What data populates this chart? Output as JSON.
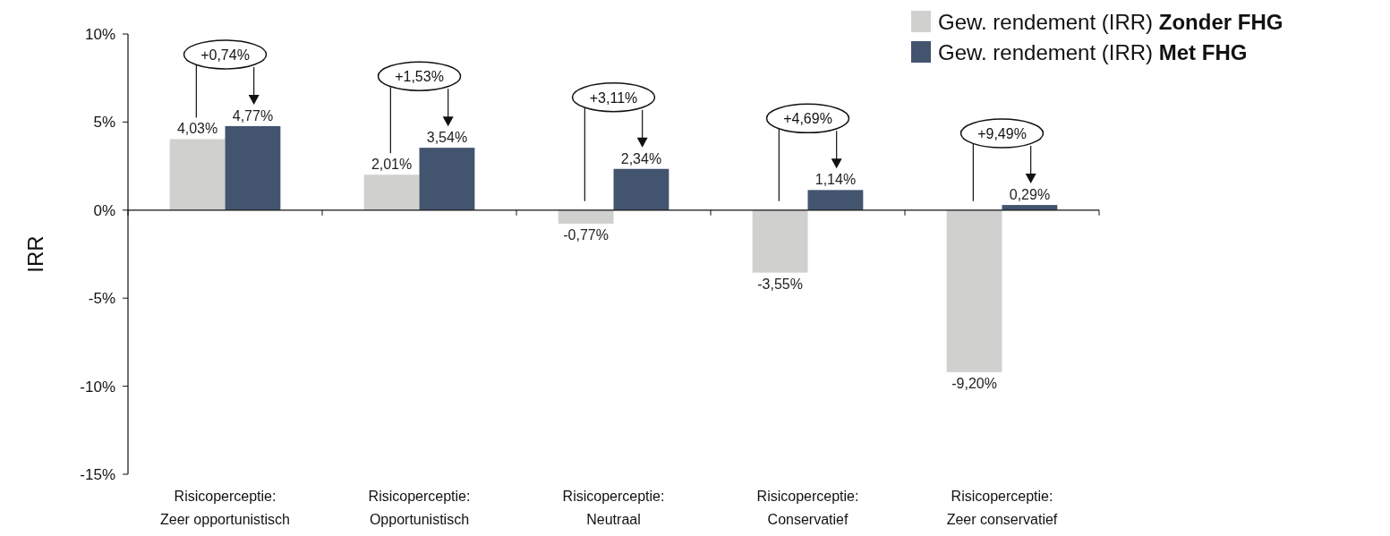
{
  "chart_data": {
    "type": "bar",
    "ylabel": "IRR",
    "categories": [
      "Risicoperceptie:\nZeer opportunistisch",
      "Risicoperceptie:\nOpportunistisch",
      "Risicoperceptie:\nNeutraal",
      "Risicoperceptie:\nConservatief",
      "Risicoperceptie:\nZeer conservatief"
    ],
    "series": [
      {
        "name": "Gew. rendement (IRR) Zonder FHG",
        "color": "#d0d0ce",
        "values": [
          4.03,
          2.01,
          -0.77,
          -3.55,
          -9.2
        ],
        "value_labels": [
          "4,03%",
          "2,01%",
          "-0,77%",
          "-3,55%",
          "-9,20%"
        ]
      },
      {
        "name": "Gew. rendement (IRR) Met FHG",
        "color": "#43546e",
        "values": [
          4.77,
          3.54,
          2.34,
          1.14,
          0.29
        ],
        "value_labels": [
          "4,77%",
          "3,54%",
          "2,34%",
          "1,14%",
          "0,29%"
        ]
      }
    ],
    "annotations": [
      "+0,74%",
      "+1,53%",
      "+3,11%",
      "+4,69%",
      "+9,49%"
    ],
    "ylim": [
      -15,
      10
    ],
    "yticks": [
      {
        "value": -15,
        "label": "-15%"
      },
      {
        "value": -10,
        "label": "-10%"
      },
      {
        "value": -5,
        "label": "-5%"
      },
      {
        "value": 0,
        "label": "0%"
      },
      {
        "value": 5,
        "label": "5%"
      },
      {
        "value": 10,
        "label": "10%"
      }
    ],
    "legend": "top right"
  }
}
